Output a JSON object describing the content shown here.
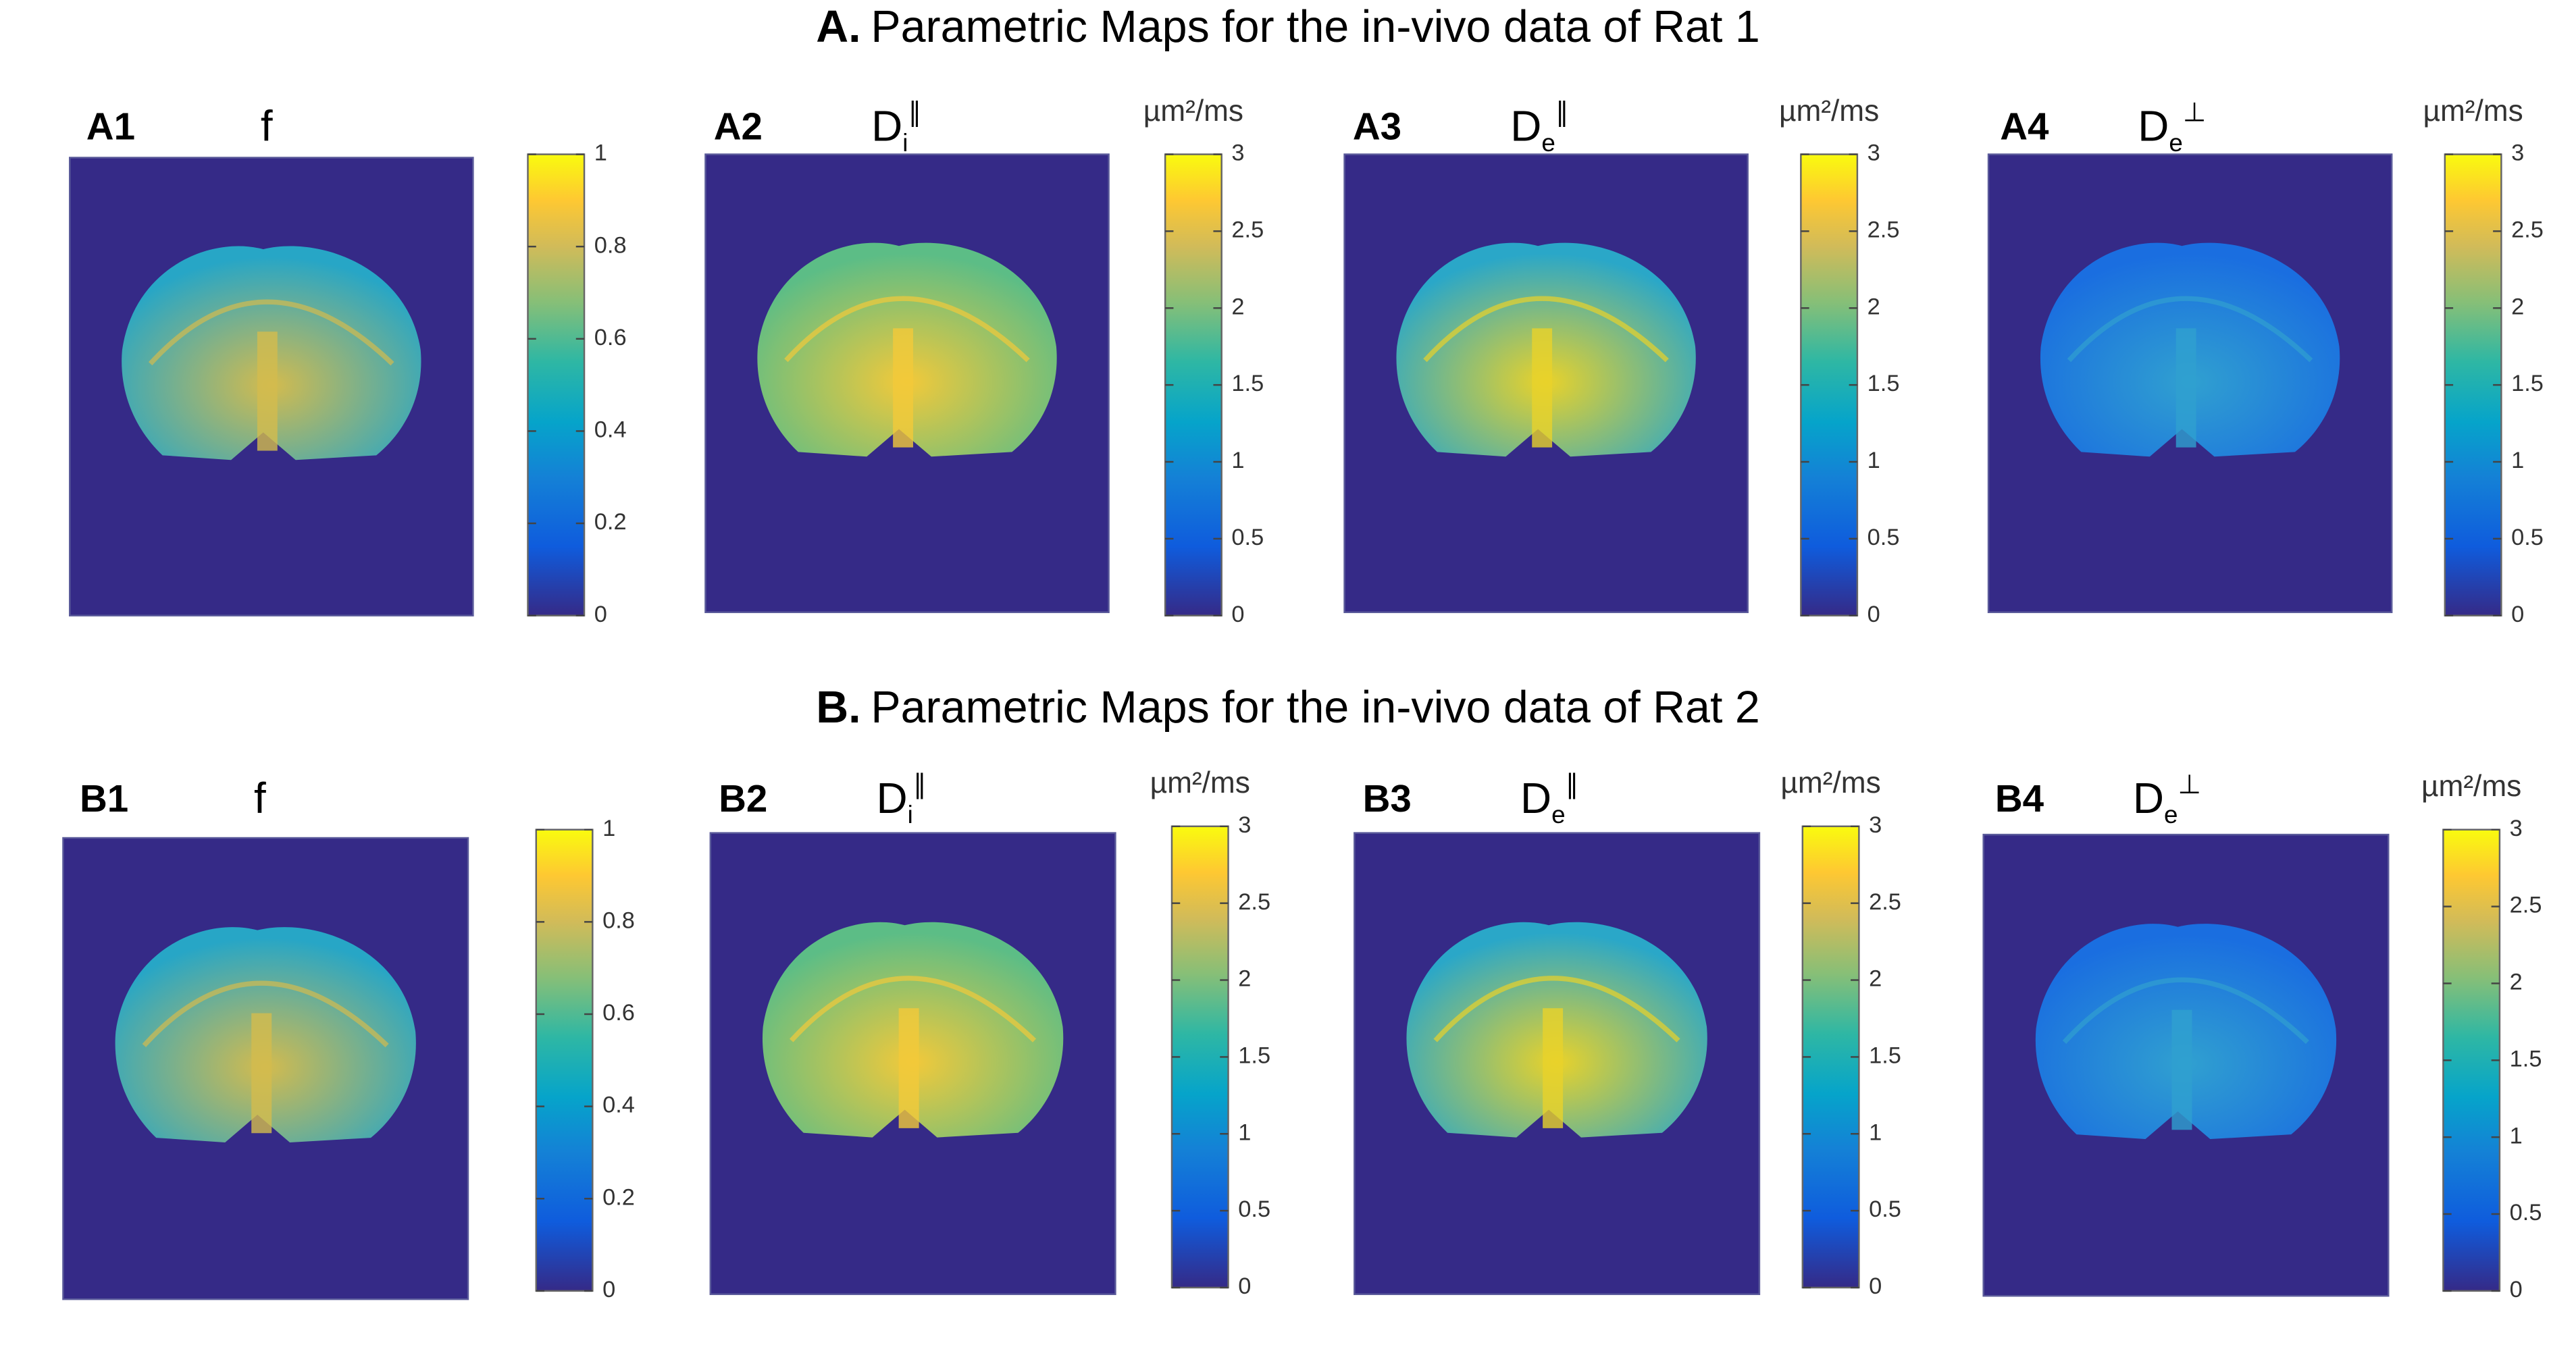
{
  "figure": {
    "sections": [
      {
        "title": {
          "label": "A.",
          "text": "Parametric Maps for the in-vivo data of Rat 1"
        },
        "panels": [
          {
            "label": "A1",
            "parameter": {
              "base": "f"
            },
            "clim": [
              0,
              1
            ],
            "ticks": [
              0,
              0.2,
              0.4,
              0.6,
              0.8,
              1
            ]
          },
          {
            "label": "A2",
            "parameter": {
              "base": "D",
              "sub": "i",
              "sup": "∥"
            },
            "unit": "µm²/ms",
            "clim": [
              0,
              3
            ],
            "ticks": [
              0,
              0.5,
              1,
              1.5,
              2,
              2.5,
              3
            ]
          },
          {
            "label": "A3",
            "parameter": {
              "base": "D",
              "sub": "e",
              "sup": "∥"
            },
            "unit": "µm²/ms",
            "clim": [
              0,
              3
            ],
            "ticks": [
              0,
              0.5,
              1,
              1.5,
              2,
              2.5,
              3
            ]
          },
          {
            "label": "A4",
            "parameter": {
              "base": "D",
              "sub": "e",
              "sup": "⊥"
            },
            "unit": "µm²/ms",
            "clim": [
              0,
              3
            ],
            "ticks": [
              0,
              0.5,
              1,
              1.5,
              2,
              2.5,
              3
            ]
          }
        ]
      },
      {
        "title": {
          "label": "B.",
          "text": "Parametric Maps for the in-vivo data of Rat 2"
        },
        "panels": [
          {
            "label": "B1",
            "parameter": {
              "base": "f"
            },
            "clim": [
              0,
              1
            ],
            "ticks": [
              0,
              0.2,
              0.4,
              0.6,
              0.8,
              1
            ]
          },
          {
            "label": "B2",
            "parameter": {
              "base": "D",
              "sub": "i",
              "sup": "∥"
            },
            "unit": "µm²/ms",
            "clim": [
              0,
              3
            ],
            "ticks": [
              0,
              0.5,
              1,
              1.5,
              2,
              2.5,
              3
            ]
          },
          {
            "label": "B3",
            "parameter": {
              "base": "D",
              "sub": "e",
              "sup": "∥"
            },
            "unit": "µm²/ms",
            "clim": [
              0,
              3
            ],
            "ticks": [
              0,
              0.5,
              1,
              1.5,
              2,
              2.5,
              3
            ]
          },
          {
            "label": "B4",
            "parameter": {
              "base": "D",
              "sub": "e",
              "sup": "⊥"
            },
            "unit": "µm²/ms",
            "clim": [
              0,
              3
            ],
            "ticks": [
              0,
              0.5,
              1,
              1.5,
              2,
              2.5,
              3
            ]
          }
        ]
      }
    ]
  }
}
